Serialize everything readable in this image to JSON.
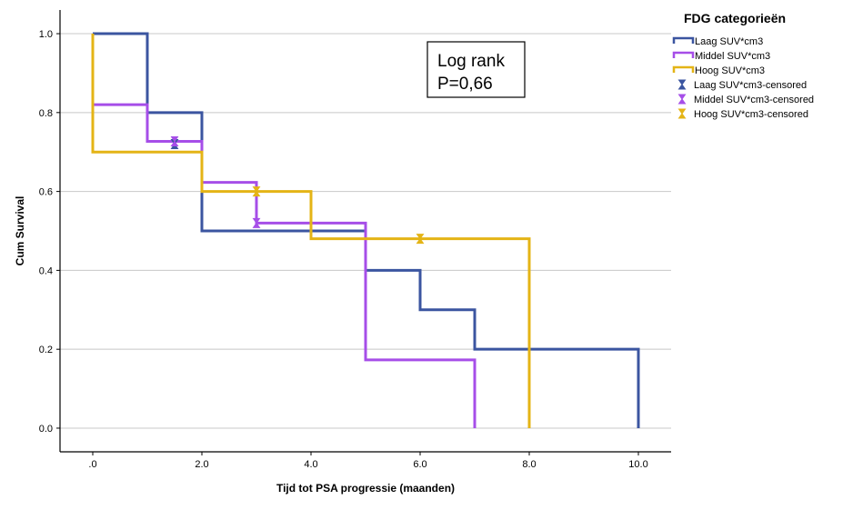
{
  "chart_data": {
    "type": "line",
    "subtype": "kaplan-meier step survival curves",
    "xlabel": "Tijd tot PSA progressie (maanden)",
    "ylabel": "Cum Survival",
    "xlim": [
      -0.6,
      10.6
    ],
    "ylim": [
      -0.06,
      1.06
    ],
    "x_ticks": [
      ".0",
      "2.0",
      "4.0",
      "6.0",
      "8.0",
      "10.0"
    ],
    "x_tick_values": [
      0,
      2,
      4,
      6,
      8,
      10
    ],
    "y_ticks": [
      "0.0",
      "0.2",
      "0.4",
      "0.6",
      "0.8",
      "1.0"
    ],
    "y_tick_values": [
      0,
      0.2,
      0.4,
      0.6,
      0.8,
      1.0
    ],
    "grid": "horizontal",
    "legend": {
      "title": "FDG categorieën",
      "position": "right",
      "entries": [
        {
          "label": "Laag SUV*cm3",
          "kind": "line",
          "color": "#3b55a0"
        },
        {
          "label": "Middel SUV*cm3",
          "kind": "line",
          "color": "#a64ee8"
        },
        {
          "label": "Hoog SUV*cm3",
          "kind": "line",
          "color": "#e4b416"
        },
        {
          "label": "Laag SUV*cm3-censored",
          "kind": "censor",
          "color": "#3b55a0"
        },
        {
          "label": "Middel SUV*cm3-censored",
          "kind": "censor",
          "color": "#a64ee8"
        },
        {
          "label": "Hoog SUV*cm3-censored",
          "kind": "censor",
          "color": "#e4b416"
        }
      ]
    },
    "annotation": {
      "lines": [
        "Log rank",
        "P=0,66"
      ]
    },
    "series": [
      {
        "name": "Laag SUV*cm3",
        "color": "#3b55a0",
        "steps": [
          [
            0,
            1.0
          ],
          [
            1,
            0.8
          ],
          [
            2,
            0.5
          ],
          [
            5,
            0.4
          ],
          [
            6,
            0.3
          ],
          [
            7,
            0.2
          ],
          [
            10,
            0.0
          ]
        ],
        "censored": [
          [
            1.5,
            0.72
          ]
        ]
      },
      {
        "name": "Middel SUV*cm3",
        "color": "#a64ee8",
        "steps": [
          [
            0,
            0.82
          ],
          [
            1,
            0.727
          ],
          [
            2,
            0.623
          ],
          [
            3,
            0.52
          ],
          [
            5,
            0.173
          ],
          [
            7,
            0.0
          ]
        ],
        "censored": [
          [
            1.5,
            0.727
          ],
          [
            3,
            0.52
          ]
        ]
      },
      {
        "name": "Hoog SUV*cm3",
        "color": "#e4b416",
        "steps": [
          [
            0,
            1.0
          ],
          [
            0,
            0.7
          ],
          [
            2,
            0.6
          ],
          [
            4,
            0.48
          ],
          [
            8,
            0.0
          ]
        ],
        "censored": [
          [
            3,
            0.6
          ],
          [
            6,
            0.48
          ]
        ]
      }
    ]
  }
}
